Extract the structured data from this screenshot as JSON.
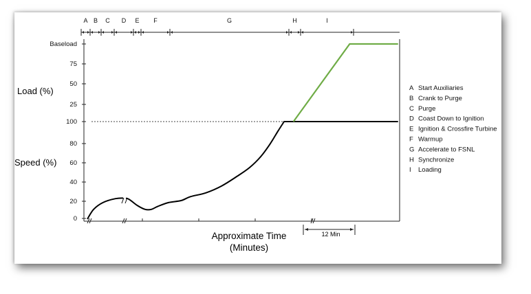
{
  "chart_data": {
    "type": "line",
    "title": "",
    "xlabel_line1": "Approximate Time",
    "xlabel_line2": "(Minutes)",
    "ylabel_load": "Load (%)",
    "ylabel_speed": "Speed (%)",
    "load_ticks": [
      "Baseload",
      "75",
      "50",
      "25"
    ],
    "speed_ticks": [
      "100",
      "80",
      "60",
      "40",
      "20",
      "0"
    ],
    "phases": [
      "A",
      "B",
      "C",
      "D",
      "E",
      "F",
      "G",
      "H",
      "I"
    ],
    "legend": [
      {
        "key": "A",
        "label": "Start Auxiliaries"
      },
      {
        "key": "B",
        "label": "Crank to Purge"
      },
      {
        "key": "C",
        "label": "Purge"
      },
      {
        "key": "D",
        "label": "Coast Down to Ignition"
      },
      {
        "key": "E",
        "label": "Ignition & Crossfire Turbine"
      },
      {
        "key": "F",
        "label": "Warmup"
      },
      {
        "key": "G",
        "label": "Accelerate to FSNL"
      },
      {
        "key": "H",
        "label": "Synchronize"
      },
      {
        "key": "I",
        "label": "Loading"
      }
    ],
    "annotation_interval": "12 Min",
    "series": [
      {
        "role": "speed_percent",
        "color": "#000000",
        "points": [
          [
            0.0,
            0
          ],
          [
            0.02,
            10
          ],
          [
            0.05,
            17
          ],
          [
            0.09,
            21
          ],
          [
            0.12,
            21.5
          ],
          [
            0.135,
            20
          ],
          [
            0.16,
            14
          ],
          [
            0.185,
            10
          ],
          [
            0.205,
            10
          ],
          [
            0.225,
            13
          ],
          [
            0.26,
            17
          ],
          [
            0.3,
            19
          ],
          [
            0.33,
            23
          ],
          [
            0.38,
            27
          ],
          [
            0.43,
            34
          ],
          [
            0.48,
            44
          ],
          [
            0.52,
            53
          ],
          [
            0.555,
            64
          ],
          [
            0.585,
            77
          ],
          [
            0.61,
            90
          ],
          [
            0.63,
            100
          ],
          [
            0.995,
            100
          ]
        ]
      },
      {
        "role": "load_percent",
        "color": "#6fac46",
        "points": [
          [
            0.66,
            0
          ],
          [
            0.84,
            100
          ],
          [
            0.995,
            100
          ]
        ]
      }
    ],
    "reference_line": {
      "series": "speed_percent",
      "value": 100,
      "style": "dashed"
    },
    "colors": {
      "speed": "#000000",
      "load": "#6fac46",
      "axis": "#222222"
    }
  }
}
